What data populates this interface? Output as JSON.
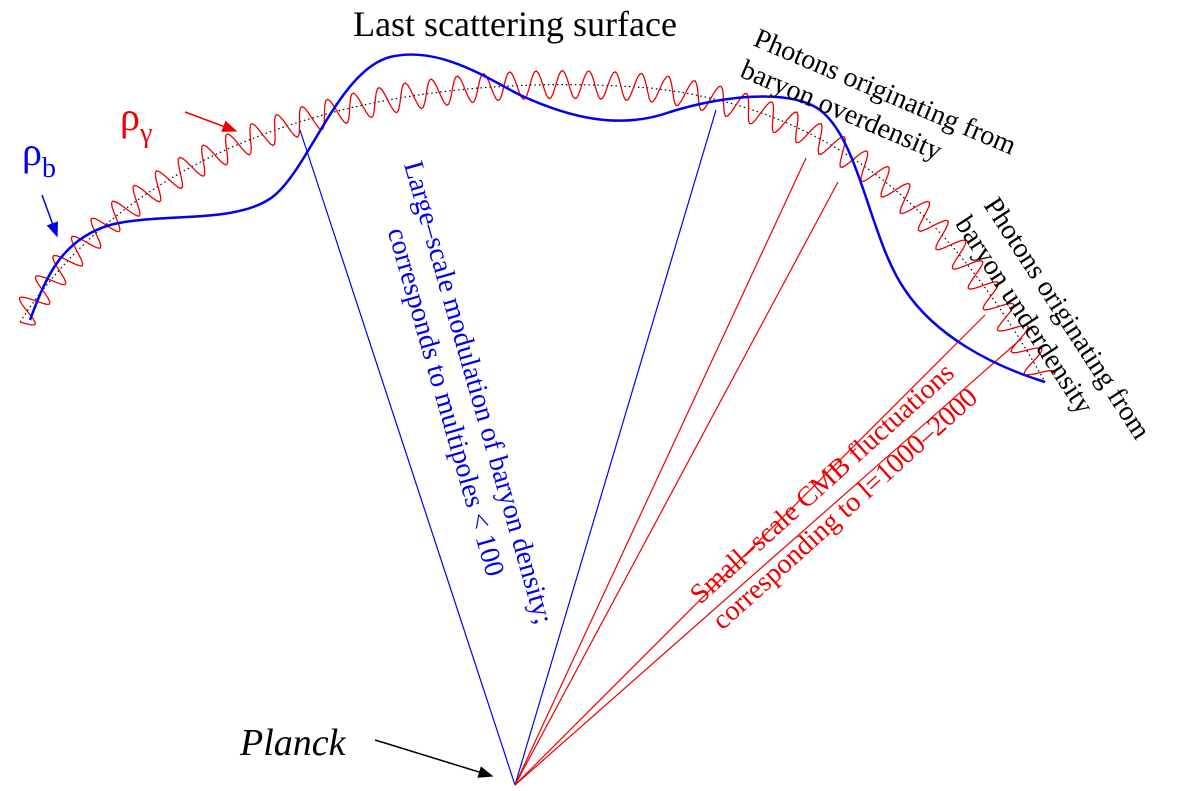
{
  "title": "Last scattering surface",
  "labels": {
    "rho_b": {
      "symbol": "ρ",
      "subscript": "b"
    },
    "rho_gamma": {
      "symbol": "ρ",
      "subscript": "γ"
    },
    "overdensity": [
      "Photons originating from",
      "baryon overdensity"
    ],
    "underdensity": [
      "Photons originating from",
      "baryon underdensity"
    ],
    "large_scale": [
      "Large–scale modulation of baryon density;",
      "corresponds to multipoles < 100"
    ],
    "small_scale": [
      "Small–scale CMB fluctuations",
      "corresponding to l=1000–2000"
    ],
    "planck": "Planck"
  }
}
